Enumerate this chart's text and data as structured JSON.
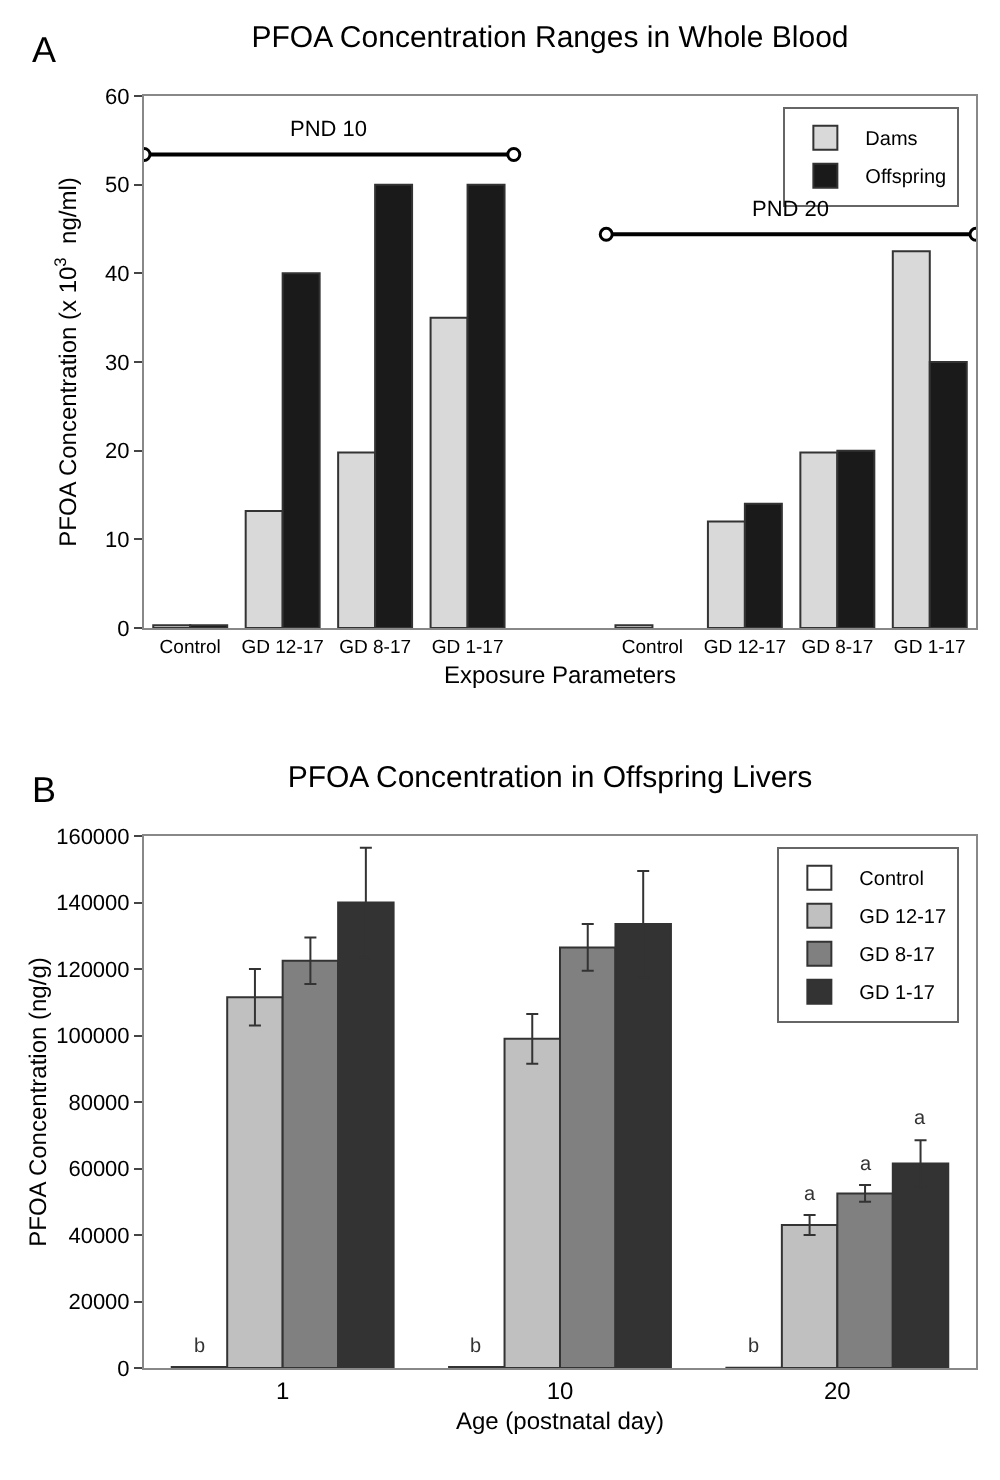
{
  "chart_data": [
    {
      "type": "bar",
      "title": "PFOA Concentration Ranges in Whole Blood",
      "xlabel": "Exposure Parameters",
      "ylabel": "PFOA Concentration (x 10$^{3}$  ng/ml)",
      "annotations": [
        "A",
        "PND 10",
        "PND 20"
      ],
      "categories": [
        "Control",
        "GD 12-17",
        "GD 8-17",
        "GD 1-17",
        null,
        "Control",
        "GD 12-17",
        "GD 8-17",
        "GD 1-17"
      ],
      "series": [
        {
          "name": "Dams",
          "color": "#d9d9d9",
          "values": [
            0.3,
            13.2,
            19.8,
            35,
            null,
            0.3,
            12,
            19.8,
            42.5
          ]
        },
        {
          "name": "Offspring",
          "color": "#1a1a1a",
          "values": [
            0.3,
            40,
            50,
            50,
            null,
            null,
            14,
            20,
            30
          ]
        }
      ],
      "ylim": [
        0,
        60
      ],
      "yticks": [
        0,
        10,
        20,
        30,
        40,
        50,
        60
      ],
      "grid": false,
      "legend": "top right"
    },
    {
      "type": "bar",
      "title": "PFOA Concentration in Offspring Livers",
      "xlabel": "Age (postnatal day)",
      "ylabel": "PFOA Concentration (ng/g)",
      "annotations": [
        "B"
      ],
      "categories": [
        "1",
        "10",
        "20"
      ],
      "series": [
        {
          "name": "Control",
          "color": "#ffffff",
          "values": [
            300,
            300,
            100
          ],
          "value_labels": [
            "b",
            "b",
            "b"
          ]
        },
        {
          "name": "GD 12-17",
          "color": "#c0c0c0",
          "values": [
            111500,
            99000,
            43000
          ],
          "errors": [
            8500,
            7500,
            3000
          ],
          "value_labels": [
            null,
            null,
            "a"
          ]
        },
        {
          "name": "GD 8-17",
          "color": "#808080",
          "values": [
            122500,
            126500,
            52500
          ],
          "errors": [
            7000,
            7000,
            2500
          ],
          "value_labels": [
            null,
            null,
            "a"
          ]
        },
        {
          "name": "GD 1-17",
          "color": "#333333",
          "values": [
            140000,
            133500,
            61500
          ],
          "errors": [
            16500,
            16000,
            7000
          ],
          "value_labels": [
            null,
            null,
            "a"
          ]
        }
      ],
      "ylim": [
        0,
        160000
      ],
      "yticks": [
        0,
        20000,
        40000,
        60000,
        80000,
        100000,
        120000,
        140000,
        160000
      ],
      "grid": false,
      "legend": "top right"
    }
  ]
}
